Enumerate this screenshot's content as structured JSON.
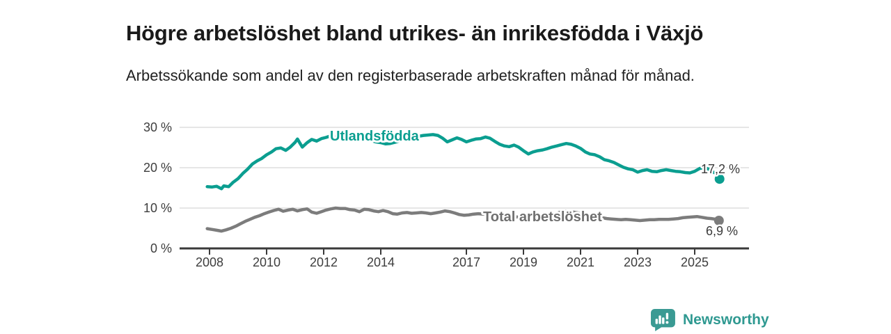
{
  "header": {
    "title": "Högre arbetslöshet bland utrikes- än inrikesfödda i Växjö",
    "subtitle": "Arbetssökande som andel av den registerbaserade arbetskraften månad för månad."
  },
  "footer": {
    "brand": "Newsworthy",
    "logo_icon": "bar-chart-speech-bubble"
  },
  "colors": {
    "teal": "#0b9e90",
    "gray": "#7c7c7c",
    "gray_label": "#6f6f6f",
    "axis": "#3a3a3a",
    "gridline": "#dedede",
    "logo_teal": "#3a9a93",
    "background": "#ffffff"
  },
  "chart_data": {
    "type": "line",
    "title": "Högre arbetslöshet bland utrikes- än inrikesfödda i Växjö",
    "subtitle": "Arbetssökande som andel av den registerbaserade arbetskraften månad för månad.",
    "grid": "horizontal",
    "legend": "inline-labels",
    "xlim": [
      2007.6,
      2026.9
    ],
    "ylim": [
      0,
      30
    ],
    "y_ticks": [
      {
        "value": 0,
        "label": "0 %"
      },
      {
        "value": 10,
        "label": "10 %"
      },
      {
        "value": 20,
        "label": "20 %"
      },
      {
        "value": 30,
        "label": "30 %"
      }
    ],
    "x_ticks": [
      {
        "year": 2008,
        "label": "2008"
      },
      {
        "year": 2010,
        "label": "2010"
      },
      {
        "year": 2012,
        "label": "2012"
      },
      {
        "year": 2014,
        "label": "2014"
      },
      {
        "year": 2017,
        "label": "2017"
      },
      {
        "year": 2019,
        "label": "2019"
      },
      {
        "year": 2021,
        "label": "2021"
      },
      {
        "year": 2023,
        "label": "2023"
      },
      {
        "year": 2025,
        "label": "2025"
      }
    ],
    "series": [
      {
        "name": "Utlandsfödda",
        "color": "#0b9e90",
        "end_label": "17,2 %",
        "end_value": 17.2,
        "end_dot": [
          2025.87,
          17.2
        ],
        "connector": "thin",
        "points": [
          [
            2007.92,
            15.3
          ],
          [
            2008.08,
            15.2
          ],
          [
            2008.25,
            15.4
          ],
          [
            2008.42,
            14.8
          ],
          [
            2008.5,
            15.5
          ],
          [
            2008.67,
            15.3
          ],
          [
            2008.83,
            16.4
          ],
          [
            2009.0,
            17.3
          ],
          [
            2009.17,
            18.6
          ],
          [
            2009.33,
            19.6
          ],
          [
            2009.5,
            20.9
          ],
          [
            2009.67,
            21.7
          ],
          [
            2009.83,
            22.3
          ],
          [
            2010.0,
            23.2
          ],
          [
            2010.17,
            23.9
          ],
          [
            2010.33,
            24.7
          ],
          [
            2010.5,
            24.9
          ],
          [
            2010.67,
            24.3
          ],
          [
            2010.83,
            25.1
          ],
          [
            2011.0,
            26.3
          ],
          [
            2011.08,
            27.1
          ],
          [
            2011.25,
            25.1
          ],
          [
            2011.42,
            26.2
          ],
          [
            2011.58,
            27.0
          ],
          [
            2011.75,
            26.6
          ],
          [
            2011.92,
            27.2
          ],
          [
            2012.08,
            27.5
          ],
          [
            2012.25,
            27.9
          ],
          [
            2012.42,
            27.6
          ],
          [
            2012.58,
            27.9
          ],
          [
            2012.75,
            27.7
          ],
          [
            2013.0,
            27.8
          ],
          [
            2013.17,
            27.9
          ],
          [
            2013.33,
            27.3
          ],
          [
            2013.5,
            27.0
          ],
          [
            2013.67,
            26.7
          ],
          [
            2013.83,
            26.4
          ],
          [
            2014.0,
            26.2
          ],
          [
            2014.17,
            25.9
          ],
          [
            2014.33,
            26.0
          ],
          [
            2014.5,
            26.3
          ],
          [
            2014.67,
            26.7
          ],
          [
            2014.83,
            27.0
          ],
          [
            2015.0,
            27.3
          ],
          [
            2015.17,
            27.5
          ],
          [
            2015.33,
            27.8
          ],
          [
            2015.5,
            28.0
          ],
          [
            2015.67,
            28.1
          ],
          [
            2015.83,
            28.2
          ],
          [
            2016.0,
            28.0
          ],
          [
            2016.17,
            27.3
          ],
          [
            2016.33,
            26.4
          ],
          [
            2016.5,
            26.9
          ],
          [
            2016.67,
            27.4
          ],
          [
            2016.83,
            27.0
          ],
          [
            2017.0,
            26.4
          ],
          [
            2017.17,
            26.8
          ],
          [
            2017.33,
            27.1
          ],
          [
            2017.5,
            27.2
          ],
          [
            2017.67,
            27.6
          ],
          [
            2017.83,
            27.3
          ],
          [
            2018.0,
            26.5
          ],
          [
            2018.17,
            25.8
          ],
          [
            2018.33,
            25.4
          ],
          [
            2018.5,
            25.2
          ],
          [
            2018.67,
            25.6
          ],
          [
            2018.83,
            25.1
          ],
          [
            2019.0,
            24.2
          ],
          [
            2019.17,
            23.4
          ],
          [
            2019.33,
            23.9
          ],
          [
            2019.5,
            24.2
          ],
          [
            2019.67,
            24.4
          ],
          [
            2019.83,
            24.7
          ],
          [
            2020.0,
            25.1
          ],
          [
            2020.17,
            25.4
          ],
          [
            2020.33,
            25.7
          ],
          [
            2020.5,
            26.0
          ],
          [
            2020.67,
            25.8
          ],
          [
            2020.83,
            25.4
          ],
          [
            2021.0,
            24.8
          ],
          [
            2021.17,
            23.9
          ],
          [
            2021.33,
            23.4
          ],
          [
            2021.5,
            23.2
          ],
          [
            2021.67,
            22.7
          ],
          [
            2021.83,
            22.0
          ],
          [
            2022.0,
            21.7
          ],
          [
            2022.17,
            21.3
          ],
          [
            2022.33,
            20.7
          ],
          [
            2022.5,
            20.1
          ],
          [
            2022.67,
            19.7
          ],
          [
            2022.83,
            19.5
          ],
          [
            2023.0,
            18.9
          ],
          [
            2023.17,
            19.3
          ],
          [
            2023.33,
            19.5
          ],
          [
            2023.5,
            19.1
          ],
          [
            2023.67,
            19.0
          ],
          [
            2023.83,
            19.3
          ],
          [
            2024.0,
            19.5
          ],
          [
            2024.17,
            19.3
          ],
          [
            2024.33,
            19.1
          ],
          [
            2024.5,
            19.0
          ],
          [
            2024.67,
            18.8
          ],
          [
            2024.83,
            18.7
          ],
          [
            2025.0,
            19.1
          ],
          [
            2025.17,
            19.8
          ],
          [
            2025.33,
            20.1
          ],
          [
            2025.5,
            19.6
          ],
          [
            2025.67,
            18.8
          ]
        ]
      },
      {
        "name": "Total arbetslöshet",
        "color": "#7c7c7c",
        "end_label": "6,9 %",
        "end_value": 6.9,
        "end_dot": [
          2025.85,
          6.9
        ],
        "connector": "thick",
        "points": [
          [
            2007.92,
            4.9
          ],
          [
            2008.08,
            4.7
          ],
          [
            2008.25,
            4.5
          ],
          [
            2008.42,
            4.3
          ],
          [
            2008.58,
            4.6
          ],
          [
            2008.75,
            5.0
          ],
          [
            2008.92,
            5.5
          ],
          [
            2009.08,
            6.1
          ],
          [
            2009.25,
            6.7
          ],
          [
            2009.42,
            7.2
          ],
          [
            2009.58,
            7.7
          ],
          [
            2009.75,
            8.1
          ],
          [
            2009.92,
            8.6
          ],
          [
            2010.08,
            9.0
          ],
          [
            2010.25,
            9.4
          ],
          [
            2010.42,
            9.7
          ],
          [
            2010.58,
            9.2
          ],
          [
            2010.75,
            9.5
          ],
          [
            2010.92,
            9.7
          ],
          [
            2011.08,
            9.3
          ],
          [
            2011.25,
            9.6
          ],
          [
            2011.42,
            9.8
          ],
          [
            2011.58,
            9.0
          ],
          [
            2011.75,
            8.7
          ],
          [
            2011.92,
            9.1
          ],
          [
            2012.08,
            9.5
          ],
          [
            2012.25,
            9.8
          ],
          [
            2012.42,
            10.0
          ],
          [
            2012.58,
            9.9
          ],
          [
            2012.75,
            9.9
          ],
          [
            2012.92,
            9.6
          ],
          [
            2013.08,
            9.5
          ],
          [
            2013.25,
            9.1
          ],
          [
            2013.42,
            9.7
          ],
          [
            2013.58,
            9.6
          ],
          [
            2013.75,
            9.3
          ],
          [
            2013.92,
            9.1
          ],
          [
            2014.08,
            9.4
          ],
          [
            2014.25,
            9.1
          ],
          [
            2014.42,
            8.6
          ],
          [
            2014.58,
            8.5
          ],
          [
            2014.75,
            8.8
          ],
          [
            2014.92,
            8.9
          ],
          [
            2015.08,
            8.7
          ],
          [
            2015.25,
            8.8
          ],
          [
            2015.42,
            8.9
          ],
          [
            2015.58,
            8.8
          ],
          [
            2015.75,
            8.6
          ],
          [
            2015.92,
            8.8
          ],
          [
            2016.08,
            9.0
          ],
          [
            2016.25,
            9.3
          ],
          [
            2016.42,
            9.1
          ],
          [
            2016.58,
            8.8
          ],
          [
            2016.75,
            8.4
          ],
          [
            2016.92,
            8.2
          ],
          [
            2017.08,
            8.3
          ],
          [
            2017.25,
            8.5
          ],
          [
            2017.42,
            8.6
          ],
          [
            2017.58,
            8.5
          ],
          [
            2017.75,
            8.4
          ],
          [
            2017.92,
            8.2
          ],
          [
            2018.08,
            8.0
          ],
          [
            2018.25,
            7.9
          ],
          [
            2018.42,
            8.0
          ],
          [
            2018.58,
            7.9
          ],
          [
            2018.75,
            7.8
          ],
          [
            2018.92,
            7.7
          ],
          [
            2019.08,
            7.6
          ],
          [
            2019.25,
            7.7
          ],
          [
            2019.42,
            7.8
          ],
          [
            2019.58,
            7.9
          ],
          [
            2019.75,
            7.8
          ],
          [
            2019.92,
            8.0
          ],
          [
            2020.08,
            8.4
          ],
          [
            2020.25,
            8.9
          ],
          [
            2020.42,
            9.3
          ],
          [
            2020.58,
            9.2
          ],
          [
            2020.75,
            9.0
          ],
          [
            2020.92,
            8.8
          ],
          [
            2021.08,
            8.5
          ],
          [
            2021.25,
            8.2
          ],
          [
            2021.42,
            8.0
          ],
          [
            2021.58,
            7.8
          ],
          [
            2021.75,
            7.6
          ],
          [
            2021.92,
            7.4
          ],
          [
            2022.08,
            7.3
          ],
          [
            2022.25,
            7.2
          ],
          [
            2022.42,
            7.1
          ],
          [
            2022.58,
            7.2
          ],
          [
            2022.75,
            7.1
          ],
          [
            2022.92,
            7.0
          ],
          [
            2023.08,
            6.9
          ],
          [
            2023.25,
            7.0
          ],
          [
            2023.42,
            7.1
          ],
          [
            2023.58,
            7.1
          ],
          [
            2023.75,
            7.2
          ],
          [
            2023.92,
            7.2
          ],
          [
            2024.08,
            7.2
          ],
          [
            2024.25,
            7.3
          ],
          [
            2024.42,
            7.4
          ],
          [
            2024.58,
            7.6
          ],
          [
            2024.75,
            7.7
          ],
          [
            2024.92,
            7.8
          ],
          [
            2025.08,
            7.9
          ],
          [
            2025.25,
            7.7
          ],
          [
            2025.42,
            7.5
          ],
          [
            2025.58,
            7.4
          ],
          [
            2025.75,
            7.2
          ]
        ]
      }
    ]
  }
}
